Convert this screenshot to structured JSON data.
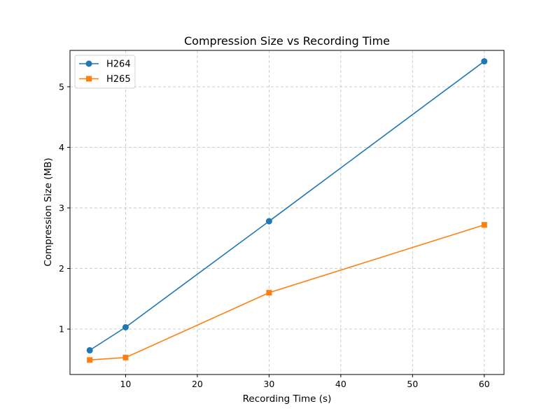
{
  "chart_data": {
    "type": "line",
    "title": "Compression Size vs Recording Time",
    "xlabel": "Recording Time (s)",
    "ylabel": "Compression Size (MB)",
    "x": [
      5,
      10,
      30,
      60
    ],
    "xlim": [
      2.25,
      62.75
    ],
    "ylim": [
      0.25,
      5.6
    ],
    "xticks": [
      10,
      20,
      30,
      40,
      50,
      60
    ],
    "yticks": [
      1,
      2,
      3,
      4,
      5
    ],
    "grid": true,
    "legend_position": "top-left",
    "series": [
      {
        "name": "H264",
        "values": [
          0.65,
          1.03,
          2.78,
          5.42
        ],
        "color": "#1f77b4",
        "marker": "circle"
      },
      {
        "name": "H265",
        "values": [
          0.49,
          0.53,
          1.6,
          2.72
        ],
        "color": "#ff7f0e",
        "marker": "square"
      }
    ]
  }
}
